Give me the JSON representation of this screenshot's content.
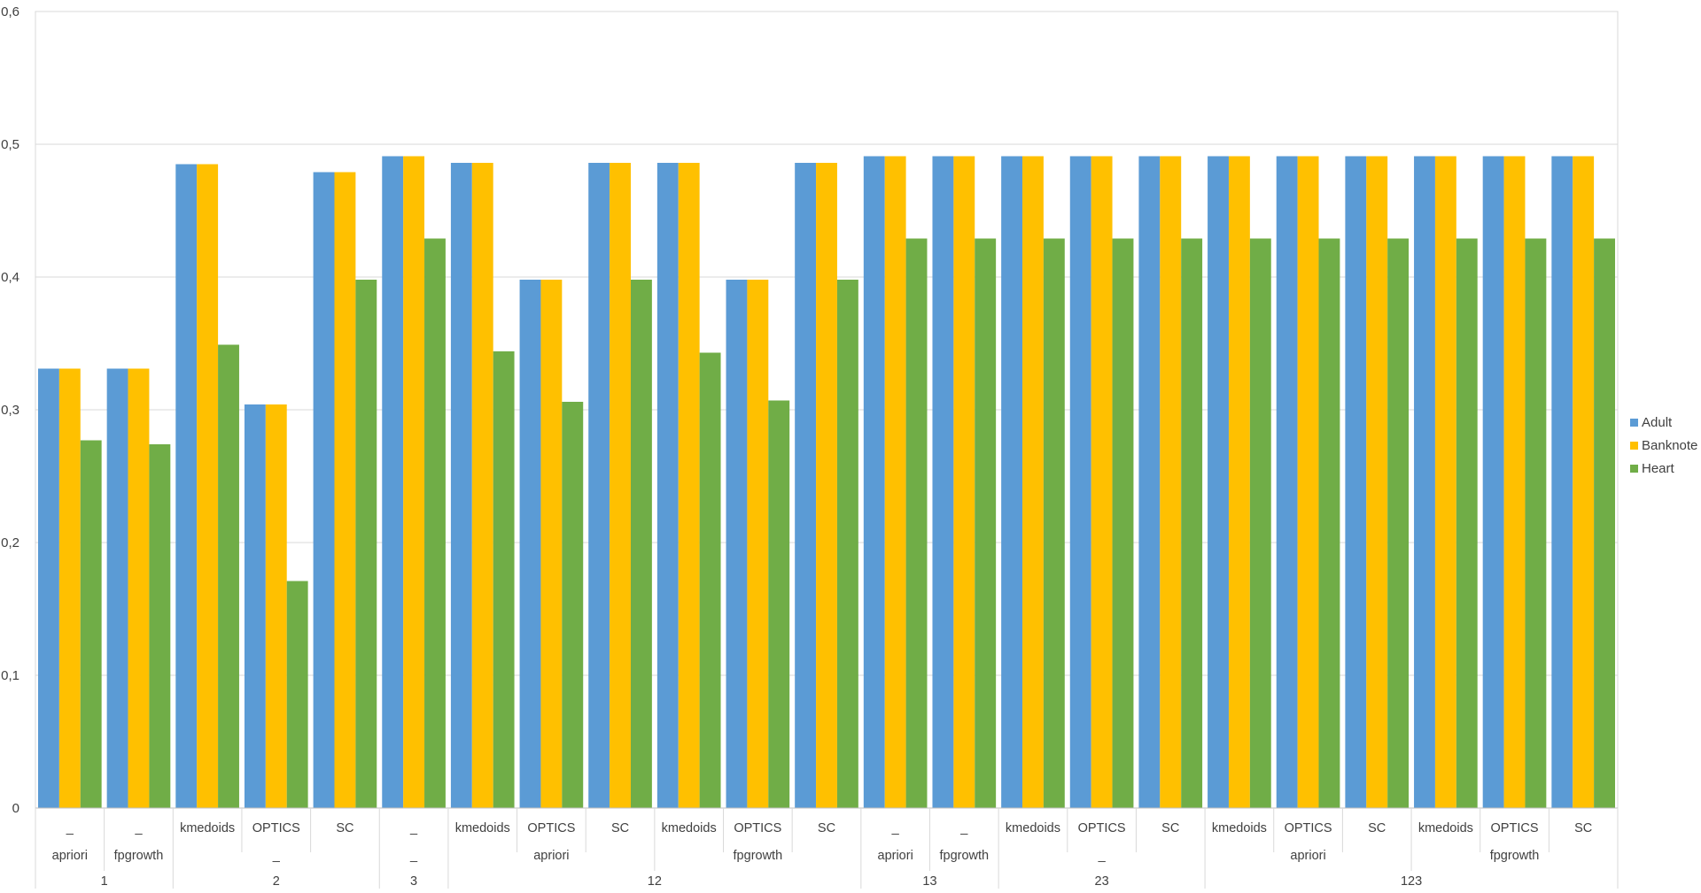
{
  "chart_data": {
    "type": "bar",
    "ylim": [
      0,
      0.6
    ],
    "yticks": [
      "0",
      "0,1",
      "0,2",
      "0,3",
      "0,4",
      "0,5",
      "0,6"
    ],
    "grid": true,
    "legend_position": "right",
    "categories": [
      {
        "l1": "_",
        "l2": "apriori",
        "l3": "1"
      },
      {
        "l1": "_",
        "l2": "fpgrowth",
        "l3": "1"
      },
      {
        "l1": "kmedoids",
        "l2": "_",
        "l3": "2"
      },
      {
        "l1": "OPTICS",
        "l2": "_",
        "l3": "2"
      },
      {
        "l1": "SC",
        "l2": "_",
        "l3": "2"
      },
      {
        "l1": "_",
        "l2": "_",
        "l3": "3"
      },
      {
        "l1": "kmedoids",
        "l2": "apriori",
        "l3": "12"
      },
      {
        "l1": "OPTICS",
        "l2": "apriori",
        "l3": "12"
      },
      {
        "l1": "SC",
        "l2": "apriori",
        "l3": "12"
      },
      {
        "l1": "kmedoids",
        "l2": "fpgrowth",
        "l3": "12"
      },
      {
        "l1": "OPTICS",
        "l2": "fpgrowth",
        "l3": "12"
      },
      {
        "l1": "SC",
        "l2": "fpgrowth",
        "l3": "12"
      },
      {
        "l1": "_",
        "l2": "apriori",
        "l3": "13"
      },
      {
        "l1": "_",
        "l2": "fpgrowth",
        "l3": "13"
      },
      {
        "l1": "kmedoids",
        "l2": "_",
        "l3": "23"
      },
      {
        "l1": "OPTICS",
        "l2": "_",
        "l3": "23"
      },
      {
        "l1": "SC",
        "l2": "_",
        "l3": "23"
      },
      {
        "l1": "kmedoids",
        "l2": "apriori",
        "l3": "123"
      },
      {
        "l1": "OPTICS",
        "l2": "apriori",
        "l3": "123"
      },
      {
        "l1": "SC",
        "l2": "apriori",
        "l3": "123"
      },
      {
        "l1": "kmedoids",
        "l2": "fpgrowth",
        "l3": "123"
      },
      {
        "l1": "OPTICS",
        "l2": "fpgrowth",
        "l3": "123"
      },
      {
        "l1": "SC",
        "l2": "fpgrowth",
        "l3": "123"
      }
    ],
    "level2_groups": [
      {
        "label": "apriori",
        "start": 0,
        "end": 0
      },
      {
        "label": "fpgrowth",
        "start": 1,
        "end": 1
      },
      {
        "label": "_",
        "start": 2,
        "end": 4
      },
      {
        "label": "_",
        "start": 5,
        "end": 5
      },
      {
        "label": "apriori",
        "start": 6,
        "end": 8
      },
      {
        "label": "fpgrowth",
        "start": 9,
        "end": 11
      },
      {
        "label": "apriori",
        "start": 12,
        "end": 12
      },
      {
        "label": "fpgrowth",
        "start": 13,
        "end": 13
      },
      {
        "label": "_",
        "start": 14,
        "end": 16
      },
      {
        "label": "apriori",
        "start": 17,
        "end": 19
      },
      {
        "label": "fpgrowth",
        "start": 20,
        "end": 22
      }
    ],
    "level3_groups": [
      {
        "label": "1",
        "start": 0,
        "end": 1
      },
      {
        "label": "2",
        "start": 2,
        "end": 4
      },
      {
        "label": "3",
        "start": 5,
        "end": 5
      },
      {
        "label": "12",
        "start": 6,
        "end": 11
      },
      {
        "label": "13",
        "start": 12,
        "end": 13
      },
      {
        "label": "23",
        "start": 14,
        "end": 16
      },
      {
        "label": "123",
        "start": 17,
        "end": 22
      }
    ],
    "series": [
      {
        "name": "Adult",
        "color": "#5B9BD5",
        "values": [
          0.331,
          0.331,
          0.485,
          0.304,
          0.479,
          0.491,
          0.486,
          0.398,
          0.486,
          0.486,
          0.398,
          0.486,
          0.491,
          0.491,
          0.491,
          0.491,
          0.491,
          0.491,
          0.491,
          0.491,
          0.491,
          0.491,
          0.491
        ]
      },
      {
        "name": "Banknote",
        "color": "#FFC000",
        "values": [
          0.331,
          0.331,
          0.485,
          0.304,
          0.479,
          0.491,
          0.486,
          0.398,
          0.486,
          0.486,
          0.398,
          0.486,
          0.491,
          0.491,
          0.491,
          0.491,
          0.491,
          0.491,
          0.491,
          0.491,
          0.491,
          0.491,
          0.491
        ]
      },
      {
        "name": "Heart",
        "color": "#70AD47",
        "values": [
          0.277,
          0.274,
          0.349,
          0.171,
          0.398,
          0.429,
          0.344,
          0.306,
          0.398,
          0.343,
          0.307,
          0.398,
          0.429,
          0.429,
          0.429,
          0.429,
          0.429,
          0.429,
          0.429,
          0.429,
          0.429,
          0.429,
          0.429
        ]
      }
    ]
  }
}
